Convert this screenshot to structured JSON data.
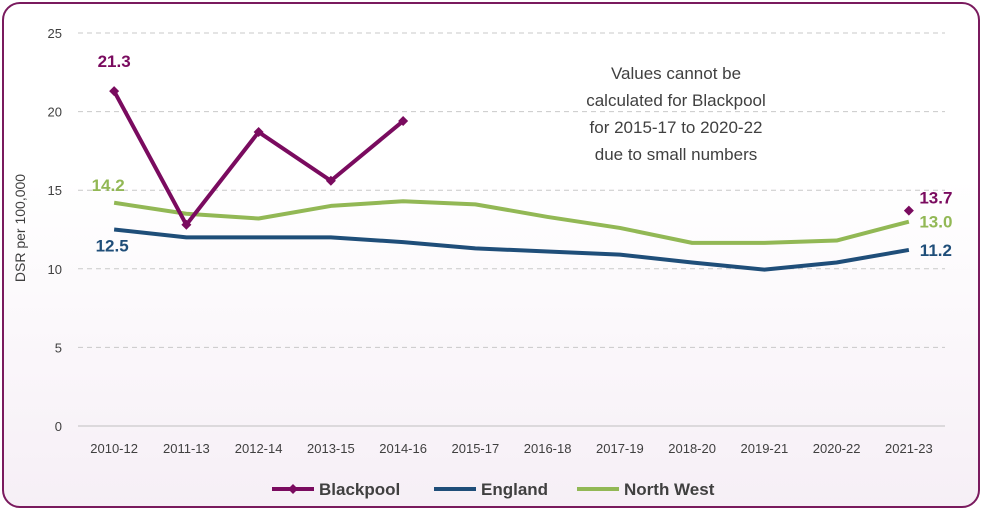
{
  "chart_data": {
    "type": "line",
    "title": "",
    "xlabel": "",
    "ylabel": "DSR per 100,000",
    "ylim": [
      0,
      25
    ],
    "yticks": [
      0,
      5,
      10,
      15,
      20,
      25
    ],
    "grid": true,
    "legend_position": "bottom",
    "categories": [
      "2010-12",
      "2011-13",
      "2012-14",
      "2013-15",
      "2014-16",
      "2015-17",
      "2016-18",
      "2017-19",
      "2018-20",
      "2019-21",
      "2020-22",
      "2021-23"
    ],
    "series": [
      {
        "name": "Blackpool",
        "color": "#7a0b5f",
        "markers": true,
        "values": [
          21.3,
          12.8,
          18.7,
          15.6,
          19.4,
          null,
          null,
          null,
          null,
          null,
          null,
          13.7
        ],
        "labels": [
          {
            "index": 0,
            "text": "21.3"
          },
          {
            "index": 11,
            "text": "13.7"
          }
        ]
      },
      {
        "name": "England",
        "color": "#1f4e79",
        "markers": false,
        "values": [
          12.5,
          12.0,
          12.0,
          12.0,
          11.7,
          11.3,
          11.1,
          10.9,
          10.4,
          9.95,
          10.4,
          11.2
        ],
        "labels": [
          {
            "index": 0,
            "text": "12.5"
          },
          {
            "index": 11,
            "text": "11.2"
          }
        ]
      },
      {
        "name": "North West",
        "color": "#92b855",
        "markers": false,
        "values": [
          14.2,
          13.5,
          13.2,
          14.0,
          14.3,
          14.1,
          13.3,
          12.6,
          11.65,
          11.65,
          11.8,
          13.0
        ],
        "labels": [
          {
            "index": 0,
            "text": "14.2"
          },
          {
            "index": 11,
            "text": "13.0"
          }
        ]
      }
    ],
    "annotation": {
      "lines": [
        "Values cannot be",
        "calculated for Blackpool",
        "for 2015-17 to 2020-22",
        "due to small numbers"
      ]
    }
  }
}
